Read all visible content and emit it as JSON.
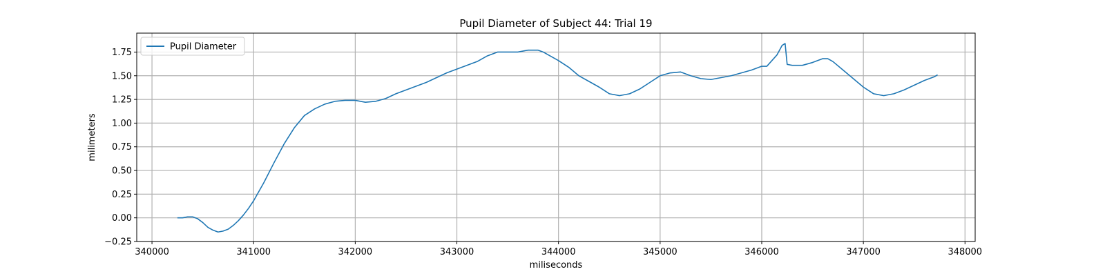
{
  "chart_data": {
    "type": "line",
    "title": "Pupil Diameter of Subject 44: Trial 19",
    "xlabel": "miliseconds",
    "ylabel": "milimeters",
    "xlim": [
      339850,
      348100
    ],
    "ylim": [
      -0.25,
      1.95
    ],
    "grid": true,
    "legend_position": "top-left",
    "x_ticks": [
      340000,
      341000,
      342000,
      343000,
      344000,
      345000,
      346000,
      347000,
      348000
    ],
    "x_tick_labels": [
      "340000",
      "341000",
      "342000",
      "343000",
      "344000",
      "345000",
      "346000",
      "347000",
      "348000"
    ],
    "y_ticks": [
      -0.25,
      0.0,
      0.25,
      0.5,
      0.75,
      1.0,
      1.25,
      1.5,
      1.75
    ],
    "y_tick_labels": [
      "−0.25",
      "0.00",
      "0.25",
      "0.50",
      "0.75",
      "1.00",
      "1.25",
      "1.50",
      "1.75"
    ],
    "series": [
      {
        "name": "Pupil Diameter",
        "color": "#1f77b4",
        "x": [
          340250,
          340300,
          340350,
          340400,
          340450,
          340500,
          340550,
          340600,
          340650,
          340700,
          340750,
          340800,
          340850,
          340900,
          340950,
          341000,
          341100,
          341200,
          341300,
          341400,
          341500,
          341600,
          341700,
          341800,
          341900,
          342000,
          342100,
          342200,
          342300,
          342400,
          342500,
          342600,
          342700,
          342800,
          342900,
          343000,
          343100,
          343200,
          343300,
          343400,
          343500,
          343600,
          343700,
          343800,
          343850,
          343900,
          344000,
          344100,
          344200,
          344300,
          344400,
          344500,
          344600,
          344700,
          344800,
          344900,
          345000,
          345100,
          345200,
          345300,
          345400,
          345500,
          345600,
          345700,
          345800,
          345900,
          346000,
          346050,
          346100,
          346150,
          346200,
          346230,
          346250,
          346300,
          346400,
          346500,
          346600,
          346650,
          346700,
          346800,
          346900,
          347000,
          347100,
          347200,
          347300,
          347400,
          347500,
          347600,
          347700,
          347730
        ],
        "values": [
          0.0,
          0.0,
          0.01,
          0.01,
          -0.01,
          -0.05,
          -0.1,
          -0.13,
          -0.15,
          -0.14,
          -0.12,
          -0.08,
          -0.03,
          0.03,
          0.1,
          0.18,
          0.37,
          0.58,
          0.78,
          0.95,
          1.08,
          1.15,
          1.2,
          1.23,
          1.24,
          1.24,
          1.22,
          1.23,
          1.26,
          1.31,
          1.35,
          1.39,
          1.43,
          1.48,
          1.53,
          1.57,
          1.61,
          1.65,
          1.71,
          1.75,
          1.75,
          1.75,
          1.77,
          1.77,
          1.75,
          1.72,
          1.66,
          1.59,
          1.5,
          1.44,
          1.38,
          1.31,
          1.29,
          1.31,
          1.36,
          1.43,
          1.5,
          1.53,
          1.54,
          1.5,
          1.47,
          1.46,
          1.48,
          1.5,
          1.53,
          1.56,
          1.6,
          1.6,
          1.66,
          1.72,
          1.82,
          1.84,
          1.62,
          1.61,
          1.61,
          1.64,
          1.68,
          1.68,
          1.65,
          1.56,
          1.47,
          1.38,
          1.31,
          1.29,
          1.31,
          1.35,
          1.4,
          1.45,
          1.49,
          1.51
        ]
      }
    ]
  }
}
